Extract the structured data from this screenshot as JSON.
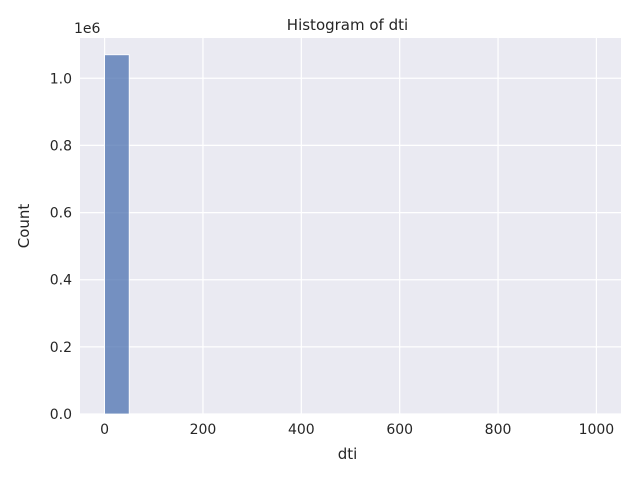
{
  "chart_data": {
    "type": "bar",
    "title": "Histogram of dti",
    "xlabel": "dti",
    "ylabel": "Count",
    "y_scale_label": "1e6",
    "xlim": [
      -49.99,
      1049.99
    ],
    "ylim": [
      0,
      1.12
    ],
    "y_units_multiplier": 1000000,
    "x_ticks": [
      0,
      200,
      400,
      600,
      800,
      1000
    ],
    "x_tick_labels": [
      "0",
      "200",
      "400",
      "600",
      "800",
      "1000"
    ],
    "y_ticks": [
      0.0,
      0.2,
      0.4,
      0.6,
      0.8,
      1.0
    ],
    "y_tick_labels": [
      "0.0",
      "0.2",
      "0.4",
      "0.6",
      "0.8",
      "1.0"
    ],
    "bins": [
      {
        "x0": 0,
        "x1": 50,
        "value": 1.07
      }
    ],
    "grid": true,
    "colors": {
      "bar_fill": "#4c72b0",
      "bar_opacity": 0.75,
      "plot_background": "#eaeaf2",
      "grid": "#ffffff",
      "text": "#262626"
    }
  }
}
